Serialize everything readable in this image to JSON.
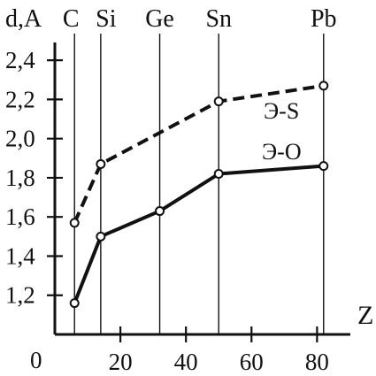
{
  "chart_data": {
    "type": "line",
    "title": "",
    "ylabel": "d,A",
    "xlabel": "Z",
    "origin_label": "0",
    "xlim": [
      0,
      88
    ],
    "ylim": [
      1.0,
      2.5
    ],
    "xticks": [
      20,
      40,
      60,
      80
    ],
    "xtick_labels": [
      "20",
      "40",
      "60",
      "80"
    ],
    "yticks": [
      1.2,
      1.4,
      1.6,
      1.8,
      2.0,
      2.2,
      2.4
    ],
    "ytick_labels": [
      "1,2",
      "1,4",
      "1,6",
      "1,8",
      "2,0",
      "2,2",
      "2,4"
    ],
    "element_lines": [
      {
        "label": "C",
        "x": 6
      },
      {
        "label": "Si",
        "x": 14
      },
      {
        "label": "Ge",
        "x": 32
      },
      {
        "label": "Sn",
        "x": 50
      },
      {
        "label": "Pb",
        "x": 82
      }
    ],
    "series": [
      {
        "name": "Э-S",
        "style": "dashed",
        "x": [
          6,
          14,
          50,
          82
        ],
        "y": [
          1.57,
          1.87,
          2.19,
          2.27
        ]
      },
      {
        "name": "Э-O",
        "style": "solid",
        "x": [
          6,
          14,
          32,
          50,
          82
        ],
        "y": [
          1.16,
          1.5,
          1.63,
          1.82,
          1.86
        ]
      }
    ],
    "colors": {
      "ink": "#111111",
      "background": "#ffffff"
    }
  }
}
